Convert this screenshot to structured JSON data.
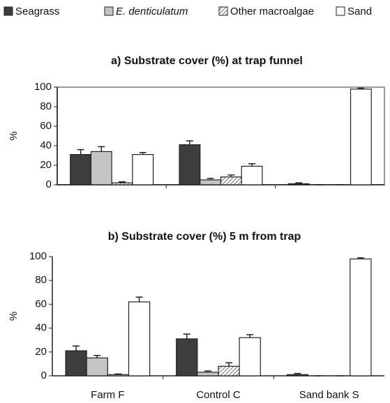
{
  "chart_data": [
    {
      "type": "bar",
      "title": "a) Substrate cover (%) at trap funnel",
      "y_label": "%",
      "categories": [
        null,
        null,
        null
      ],
      "series": [
        {
          "name": "Seagrass",
          "color": "#3d3d3d",
          "values": [
            31,
            41,
            1
          ],
          "errors": [
            5,
            4,
            1
          ]
        },
        {
          "name": "E. denticulatum",
          "color": "#c4c4c4",
          "values": [
            34,
            5,
            0
          ],
          "errors": [
            5,
            1.5,
            0
          ]
        },
        {
          "name": "Other macroalgae",
          "color": "#ffffff",
          "pattern": "hatch",
          "values": [
            2,
            8,
            0
          ],
          "errors": [
            1,
            2,
            0
          ]
        },
        {
          "name": "Sand",
          "color": "#ffffff",
          "values": [
            31,
            19,
            98
          ],
          "errors": [
            2,
            2.5,
            1
          ]
        }
      ],
      "ylim": [
        0,
        100
      ],
      "yticks": [
        0,
        20,
        40,
        60,
        80,
        100
      ],
      "frame": true
    },
    {
      "type": "bar",
      "title": "b) Substrate cover (%) 5 m from trap",
      "y_label": "%",
      "categories": [
        "Farm F",
        "Control C",
        "Sand bank S"
      ],
      "series": [
        {
          "name": "Seagrass",
          "color": "#3d3d3d",
          "values": [
            21,
            31,
            1
          ],
          "errors": [
            4,
            4,
            1
          ]
        },
        {
          "name": "E. denticulatum",
          "color": "#c4c4c4",
          "values": [
            15,
            3,
            0
          ],
          "errors": [
            2,
            1,
            0
          ]
        },
        {
          "name": "Other macroalgae",
          "color": "#ffffff",
          "pattern": "hatch",
          "values": [
            1,
            8,
            0
          ],
          "errors": [
            0.5,
            3,
            0
          ]
        },
        {
          "name": "Sand",
          "color": "#ffffff",
          "values": [
            62,
            32,
            98
          ],
          "errors": [
            4,
            2.5,
            1
          ]
        }
      ],
      "ylim": [
        0,
        100
      ],
      "yticks": [
        0,
        20,
        40,
        60,
        80,
        100
      ],
      "frame": false
    }
  ]
}
